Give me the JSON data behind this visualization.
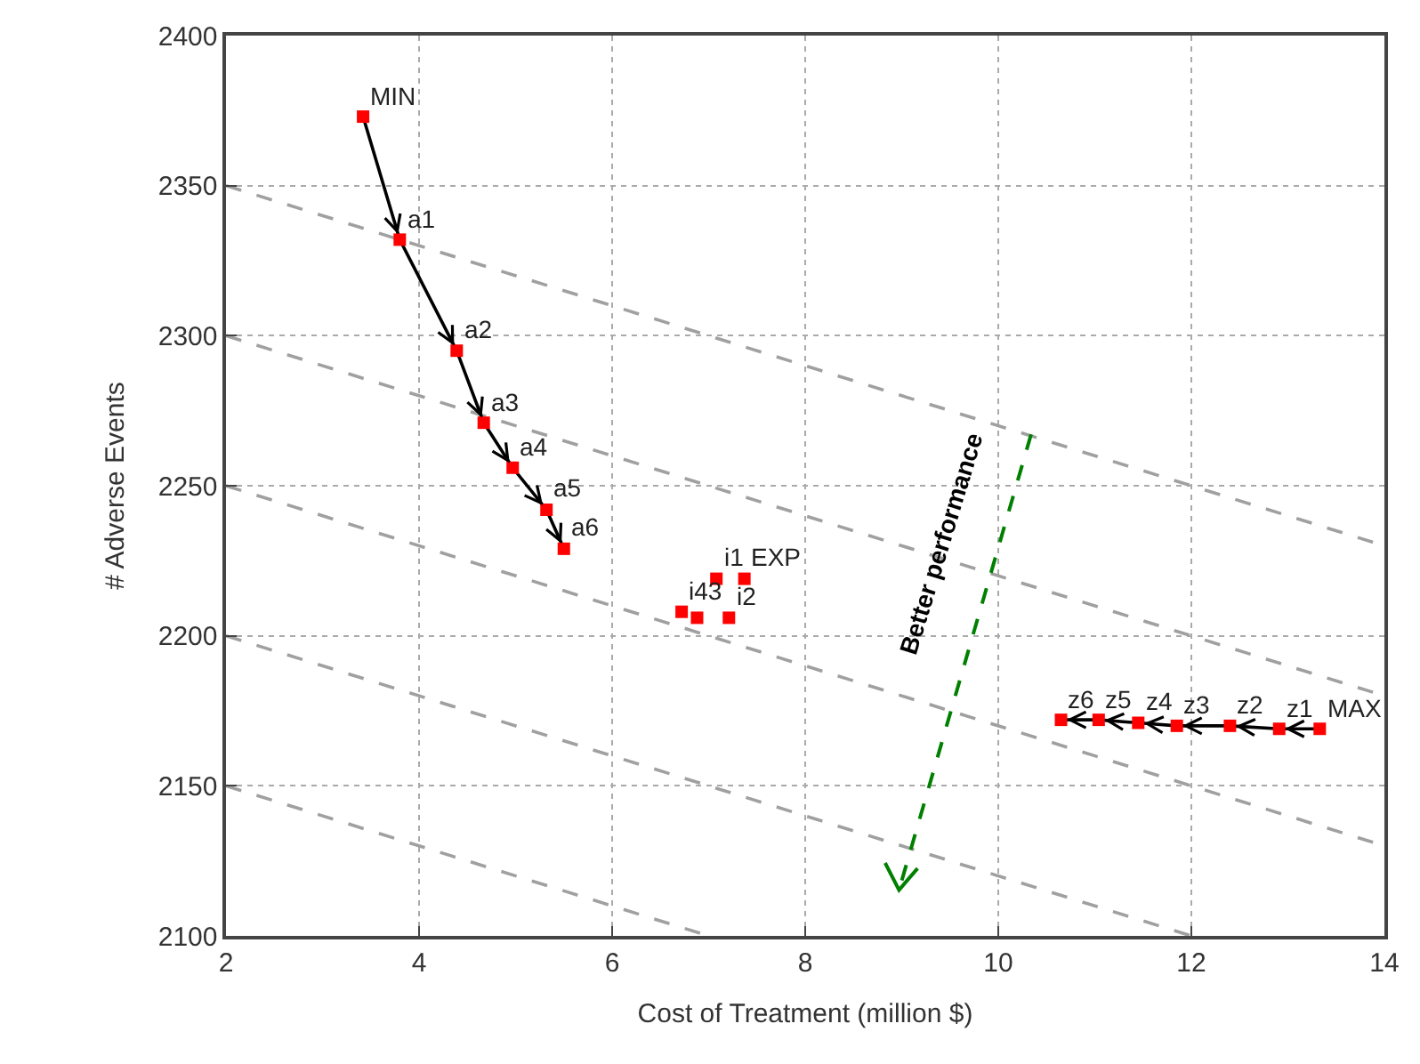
{
  "chart_data": {
    "type": "scatter",
    "xlabel": "Cost of Treatment (million $)",
    "ylabel": "# Adverse Events",
    "xlim": [
      2,
      14
    ],
    "xticks": [
      2,
      4,
      6,
      8,
      10,
      12,
      14
    ],
    "ylim": [
      2100,
      2400
    ],
    "yticks": [
      2100,
      2150,
      2200,
      2250,
      2300,
      2350,
      2400
    ],
    "grid": true,
    "series": [
      {
        "type": "line",
        "color": "#a0a0a0",
        "line_style": "dashed",
        "x": [
          2,
          14
        ],
        "values": [
          2350,
          2230
        ]
      },
      {
        "type": "line",
        "color": "#a0a0a0",
        "line_style": "dashed",
        "x": [
          2,
          14
        ],
        "values": [
          2300,
          2180
        ]
      },
      {
        "type": "line",
        "color": "#a0a0a0",
        "line_style": "dashed",
        "x": [
          2,
          14
        ],
        "values": [
          2250,
          2130
        ]
      },
      {
        "type": "line",
        "color": "#a0a0a0",
        "line_style": "dashed",
        "x": [
          2,
          12
        ],
        "values": [
          2200,
          2100
        ]
      },
      {
        "type": "line",
        "color": "#a0a0a0",
        "line_style": "dashed",
        "x": [
          2,
          7
        ],
        "values": [
          2150,
          2100
        ]
      },
      {
        "type": "line",
        "color": "#000000",
        "line_style": "solid",
        "x": [
          3.42,
          3.8,
          4.39,
          4.67,
          4.97,
          5.32,
          5.5
        ],
        "values": [
          2373,
          2332,
          2295,
          2271,
          2256,
          2242,
          2229
        ]
      },
      {
        "type": "line",
        "color": "#000000",
        "line_style": "solid",
        "x": [
          13.33,
          12.91,
          12.4,
          11.85,
          11.45,
          11.04,
          10.65
        ],
        "values": [
          2169,
          2169,
          2170,
          2170,
          2171,
          2172,
          2172
        ]
      },
      {
        "color": "#ff0000",
        "marker": "square",
        "x": [
          3.42,
          3.8,
          4.39,
          4.67,
          4.97,
          5.32,
          5.5,
          7.08,
          7.37,
          7.21,
          6.88,
          6.72,
          10.65,
          11.04,
          11.45,
          11.85,
          12.4,
          12.91,
          13.33
        ],
        "values": [
          2373,
          2332,
          2295,
          2271,
          2256,
          2242,
          2229,
          2219,
          2219,
          2206,
          2206,
          2208,
          2172,
          2172,
          2171,
          2170,
          2170,
          2169,
          2169
        ]
      }
    ],
    "annotations": [
      {
        "text": "MIN",
        "x": 3.42,
        "y": 2373
      },
      {
        "text": "a1",
        "x": 3.8,
        "y": 2332
      },
      {
        "text": "a2",
        "x": 4.39,
        "y": 2295
      },
      {
        "text": "a3",
        "x": 4.67,
        "y": 2271
      },
      {
        "text": "a4",
        "x": 4.97,
        "y": 2256
      },
      {
        "text": "a5",
        "x": 5.32,
        "y": 2242
      },
      {
        "text": "a6",
        "x": 5.5,
        "y": 2229
      },
      {
        "text": "i1",
        "x": 7.08,
        "y": 2219
      },
      {
        "text": "EXP",
        "x": 7.37,
        "y": 2219
      },
      {
        "text": "i2",
        "x": 7.21,
        "y": 2206
      },
      {
        "text": "i43",
        "x": 6.72,
        "y": 2208
      },
      {
        "text": "z6",
        "x": 10.65,
        "y": 2172
      },
      {
        "text": "z5",
        "x": 11.04,
        "y": 2172
      },
      {
        "text": "z4",
        "x": 11.45,
        "y": 2171
      },
      {
        "text": "z3",
        "x": 11.85,
        "y": 2170
      },
      {
        "text": "z2",
        "x": 12.4,
        "y": 2170
      },
      {
        "text": "z1",
        "x": 12.91,
        "y": 2169
      },
      {
        "text": "MAX",
        "x": 13.33,
        "y": 2169
      },
      "Better performance"
    ]
  }
}
